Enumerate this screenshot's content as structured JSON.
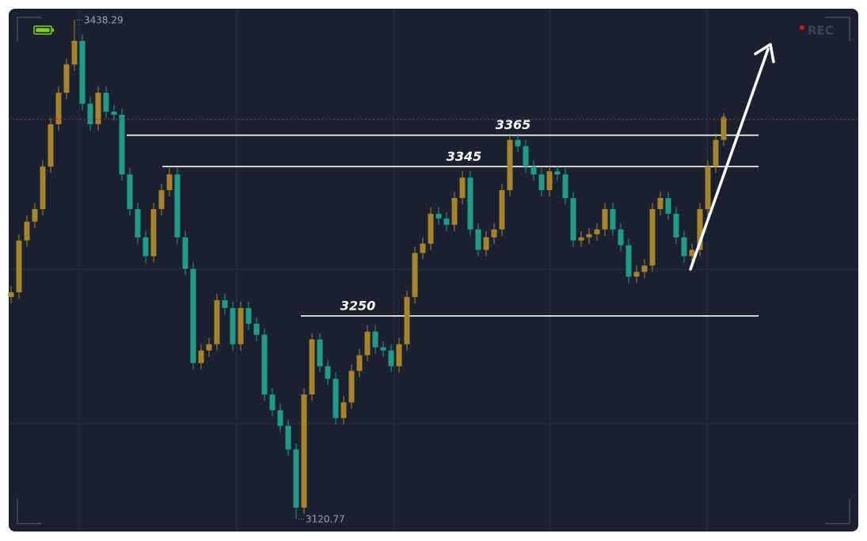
{
  "chart_data": {
    "type": "candlestick",
    "rec_label": "REC",
    "max": 3438.29,
    "min": 3120.77,
    "levels": [
      3365,
      3345,
      3250
    ],
    "up_color": "#a8832c",
    "down_color": "#1f9b87",
    "ylim": [
      3110,
      3450
    ],
    "open": [
      3262,
      3265,
      3298,
      3310,
      3318,
      3345,
      3372,
      3392,
      3410,
      3425,
      3385,
      3372,
      3392,
      3380,
      3378,
      3340,
      3318,
      3300,
      3288,
      3318,
      3330,
      3340,
      3300,
      3280,
      3220,
      3228,
      3232,
      3260,
      3255,
      3232,
      3255,
      3245,
      3238,
      3200,
      3190,
      3180,
      3165,
      3128,
      3200,
      3235,
      3218,
      3210,
      3185,
      3195,
      3215,
      3225,
      3240,
      3230,
      3228,
      3218,
      3232,
      3262,
      3290,
      3296,
      3315,
      3312,
      3308,
      3325,
      3338,
      3305,
      3292,
      3300,
      3305,
      3330,
      3362,
      3358,
      3345,
      3340,
      3330,
      3342,
      3340,
      3325,
      3298,
      3300,
      3302,
      3305,
      3318,
      3305,
      3295,
      3275,
      3278,
      3282,
      3318,
      3325,
      3315,
      3300,
      3288,
      3292,
      3318,
      3345,
      3362
    ],
    "high": [
      3269,
      3302,
      3314,
      3322,
      3349,
      3376,
      3396,
      3414,
      3438.29,
      3429,
      3389,
      3396,
      3396,
      3384,
      3382,
      3344,
      3322,
      3304,
      3322,
      3334,
      3344,
      3344,
      3304,
      3284,
      3232,
      3236,
      3264,
      3264,
      3259,
      3259,
      3259,
      3249,
      3242,
      3204,
      3194,
      3184,
      3169,
      3204,
      3239,
      3239,
      3222,
      3214,
      3199,
      3219,
      3229,
      3244,
      3244,
      3234,
      3232,
      3236,
      3266,
      3294,
      3300,
      3319,
      3319,
      3316,
      3329,
      3342,
      3342,
      3309,
      3304,
      3309,
      3334,
      3366,
      3366,
      3362,
      3349,
      3344,
      3346,
      3346,
      3344,
      3329,
      3304,
      3306,
      3309,
      3322,
      3322,
      3309,
      3299,
      3282,
      3286,
      3322,
      3329,
      3329,
      3319,
      3304,
      3296,
      3322,
      3349,
      3366,
      3379
    ],
    "low": [
      3258,
      3261,
      3294,
      3306,
      3314,
      3341,
      3368,
      3388,
      3406,
      3381,
      3368,
      3368,
      3376,
      3374,
      3336,
      3314,
      3296,
      3284,
      3284,
      3314,
      3326,
      3296,
      3276,
      3216,
      3216,
      3224,
      3228,
      3251,
      3228,
      3228,
      3241,
      3234,
      3196,
      3186,
      3176,
      3161,
      3120.77,
      3124,
      3196,
      3214,
      3206,
      3181,
      3181,
      3191,
      3211,
      3221,
      3226,
      3224,
      3214,
      3214,
      3228,
      3258,
      3286,
      3292,
      3308,
      3304,
      3304,
      3321,
      3301,
      3288,
      3288,
      3296,
      3301,
      3326,
      3354,
      3341,
      3336,
      3326,
      3326,
      3336,
      3321,
      3294,
      3294,
      3296,
      3298,
      3301,
      3301,
      3291,
      3271,
      3271,
      3274,
      3278,
      3314,
      3311,
      3296,
      3284,
      3284,
      3288,
      3314,
      3341,
      3358
    ],
    "close": [
      3265,
      3298,
      3310,
      3318,
      3345,
      3372,
      3392,
      3410,
      3425,
      3385,
      3372,
      3392,
      3380,
      3378,
      3340,
      3318,
      3300,
      3288,
      3318,
      3330,
      3340,
      3300,
      3280,
      3220,
      3228,
      3232,
      3260,
      3255,
      3232,
      3255,
      3245,
      3238,
      3200,
      3190,
      3180,
      3165,
      3128,
      3200,
      3235,
      3218,
      3210,
      3185,
      3195,
      3215,
      3225,
      3240,
      3230,
      3228,
      3218,
      3232,
      3262,
      3290,
      3296,
      3315,
      3312,
      3308,
      3325,
      3338,
      3305,
      3292,
      3300,
      3305,
      3330,
      3362,
      3358,
      3345,
      3340,
      3330,
      3342,
      3340,
      3325,
      3298,
      3300,
      3302,
      3305,
      3318,
      3305,
      3295,
      3275,
      3278,
      3282,
      3318,
      3325,
      3315,
      3300,
      3288,
      3292,
      3318,
      3345,
      3362,
      3375
    ]
  }
}
